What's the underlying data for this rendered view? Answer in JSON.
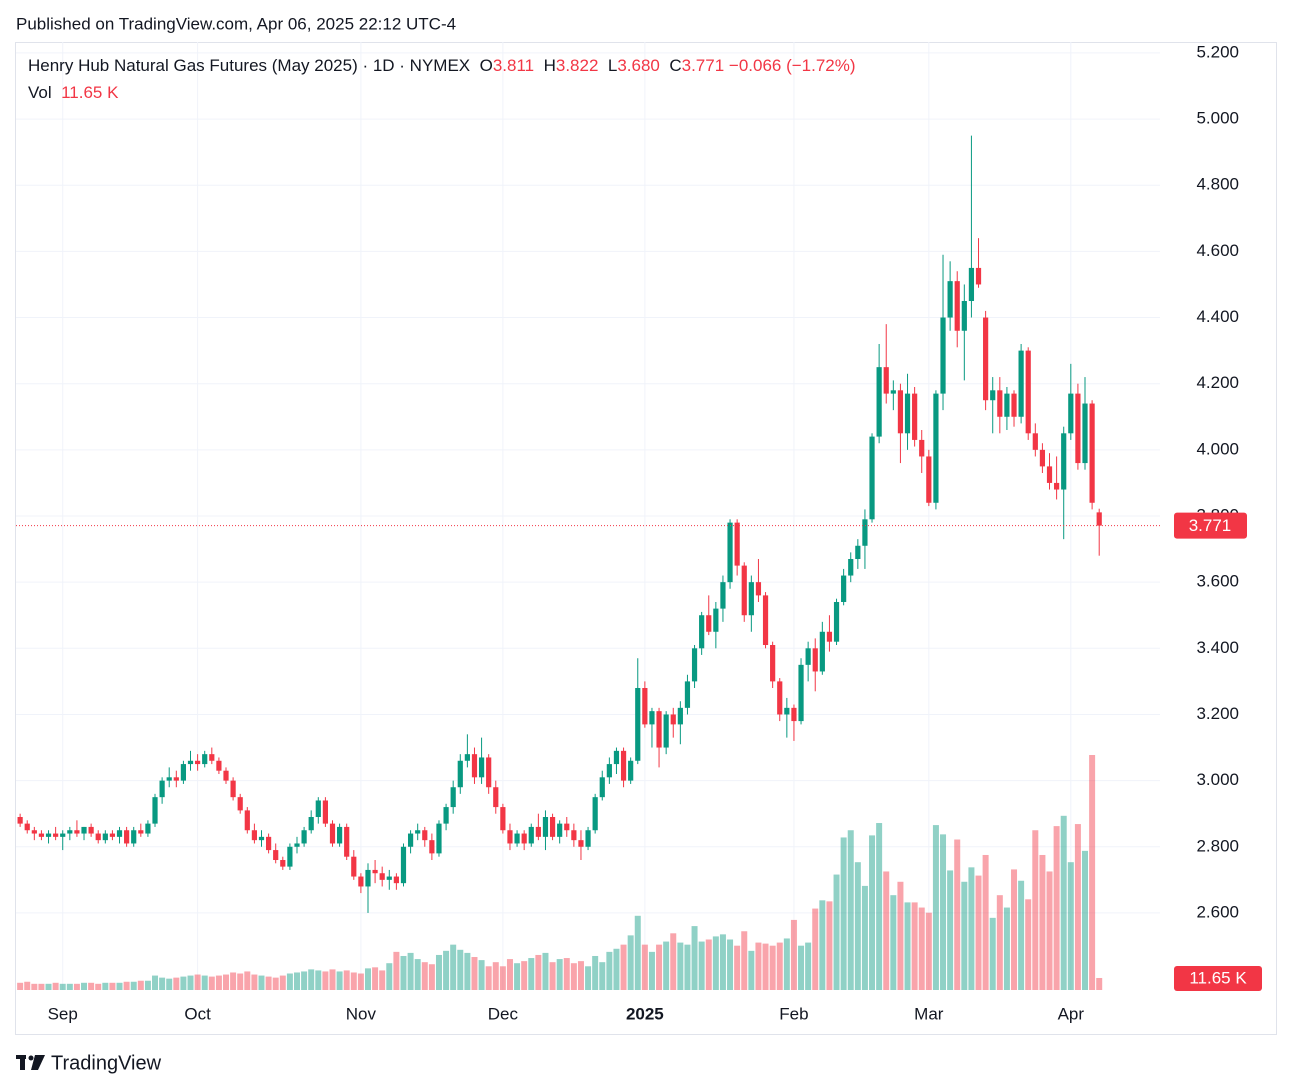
{
  "chart_data": {
    "type": "candlestick",
    "published": "Published on TradingView.com, Apr 06, 2025 22:12 UTC-4",
    "title": "Henry Hub Natural Gas Futures (May 2025) · 1D · NYMEX",
    "ohlc_names": [
      "O",
      "H",
      "L",
      "C"
    ],
    "ohlc_labels": [
      "3.811",
      "3.822",
      "3.680",
      "3.771"
    ],
    "change": "−0.066 (−1.72%)",
    "volume_name": "Vol",
    "volume_label": "11.65 K",
    "brand": "TradingView",
    "up_color": "#089981",
    "down_color": "#f23645",
    "grid": true,
    "ylim": [
      2.367,
      5.233
    ],
    "yticks": [
      {
        "value": 2.6,
        "label": "2.600"
      },
      {
        "value": 2.8,
        "label": "2.800"
      },
      {
        "value": 3.0,
        "label": "3.000"
      },
      {
        "value": 3.2,
        "label": "3.200"
      },
      {
        "value": 3.4,
        "label": "3.400"
      },
      {
        "value": 3.6,
        "label": "3.600"
      },
      {
        "value": 3.8,
        "label": "3.800"
      },
      {
        "value": 4.0,
        "label": "4.000"
      },
      {
        "value": 4.2,
        "label": "4.200"
      },
      {
        "value": 4.4,
        "label": "4.400"
      },
      {
        "value": 4.6,
        "label": "4.600"
      },
      {
        "value": 4.8,
        "label": "4.800"
      },
      {
        "value": 5.0,
        "label": "5.000"
      },
      {
        "value": 5.2,
        "label": "5.200"
      }
    ],
    "xlim": [
      -0.3,
      160
    ],
    "xticks": [
      {
        "value": 6,
        "label": "Sep"
      },
      {
        "value": 25,
        "label": "Oct"
      },
      {
        "value": 48,
        "label": "Nov"
      },
      {
        "value": 68,
        "label": "Dec"
      },
      {
        "value": 88,
        "label": "2025"
      },
      {
        "value": 109,
        "label": "Feb"
      },
      {
        "value": 128,
        "label": "Mar"
      },
      {
        "value": 148,
        "label": "Apr"
      }
    ],
    "candles": [
      [
        2.89,
        2.9,
        2.86,
        2.87
      ],
      [
        2.87,
        2.88,
        2.84,
        2.85
      ],
      [
        2.85,
        2.86,
        2.82,
        2.84
      ],
      [
        2.84,
        2.85,
        2.82,
        2.83
      ],
      [
        2.83,
        2.85,
        2.81,
        2.84
      ],
      [
        2.84,
        2.86,
        2.82,
        2.83
      ],
      [
        2.83,
        2.85,
        2.79,
        2.84
      ],
      [
        2.84,
        2.86,
        2.82,
        2.85
      ],
      [
        2.85,
        2.88,
        2.83,
        2.84
      ],
      [
        2.84,
        2.86,
        2.82,
        2.86
      ],
      [
        2.86,
        2.87,
        2.83,
        2.84
      ],
      [
        2.84,
        2.85,
        2.81,
        2.82
      ],
      [
        2.82,
        2.85,
        2.81,
        2.84
      ],
      [
        2.84,
        2.85,
        2.82,
        2.83
      ],
      [
        2.83,
        2.86,
        2.81,
        2.85
      ],
      [
        2.85,
        2.86,
        2.8,
        2.81
      ],
      [
        2.81,
        2.86,
        2.8,
        2.85
      ],
      [
        2.85,
        2.87,
        2.83,
        2.84
      ],
      [
        2.84,
        2.88,
        2.83,
        2.87
      ],
      [
        2.87,
        2.96,
        2.86,
        2.95
      ],
      [
        2.95,
        3.01,
        2.93,
        3.0
      ],
      [
        3.0,
        3.04,
        2.98,
        3.01
      ],
      [
        3.01,
        3.03,
        2.98,
        3.0
      ],
      [
        3.0,
        3.06,
        2.99,
        3.05
      ],
      [
        3.05,
        3.09,
        3.03,
        3.06
      ],
      [
        3.06,
        3.08,
        3.03,
        3.05
      ],
      [
        3.05,
        3.09,
        3.04,
        3.08
      ],
      [
        3.08,
        3.1,
        3.05,
        3.06
      ],
      [
        3.06,
        3.07,
        3.02,
        3.03
      ],
      [
        3.03,
        3.04,
        2.99,
        3.0
      ],
      [
        3.0,
        3.01,
        2.94,
        2.95
      ],
      [
        2.95,
        2.96,
        2.9,
        2.91
      ],
      [
        2.91,
        2.92,
        2.84,
        2.85
      ],
      [
        2.85,
        2.87,
        2.81,
        2.82
      ],
      [
        2.82,
        2.85,
        2.8,
        2.83
      ],
      [
        2.83,
        2.84,
        2.78,
        2.79
      ],
      [
        2.79,
        2.81,
        2.75,
        2.76
      ],
      [
        2.76,
        2.77,
        2.73,
        2.74
      ],
      [
        2.74,
        2.81,
        2.73,
        2.8
      ],
      [
        2.8,
        2.83,
        2.78,
        2.81
      ],
      [
        2.81,
        2.86,
        2.8,
        2.85
      ],
      [
        2.85,
        2.91,
        2.84,
        2.89
      ],
      [
        2.89,
        2.95,
        2.87,
        2.94
      ],
      [
        2.94,
        2.95,
        2.86,
        2.87
      ],
      [
        2.87,
        2.88,
        2.8,
        2.81
      ],
      [
        2.81,
        2.87,
        2.8,
        2.86
      ],
      [
        2.86,
        2.87,
        2.76,
        2.77
      ],
      [
        2.77,
        2.79,
        2.7,
        2.71
      ],
      [
        2.71,
        2.72,
        2.66,
        2.68
      ],
      [
        2.68,
        2.75,
        2.6,
        2.73
      ],
      [
        2.73,
        2.76,
        2.69,
        2.72
      ],
      [
        2.72,
        2.74,
        2.68,
        2.7
      ],
      [
        2.7,
        2.73,
        2.67,
        2.71
      ],
      [
        2.71,
        2.72,
        2.67,
        2.69
      ],
      [
        2.69,
        2.81,
        2.68,
        2.8
      ],
      [
        2.8,
        2.85,
        2.78,
        2.84
      ],
      [
        2.84,
        2.87,
        2.82,
        2.85
      ],
      [
        2.85,
        2.86,
        2.8,
        2.82
      ],
      [
        2.82,
        2.84,
        2.76,
        2.78
      ],
      [
        2.78,
        2.88,
        2.77,
        2.87
      ],
      [
        2.87,
        2.93,
        2.85,
        2.92
      ],
      [
        2.92,
        3.0,
        2.9,
        2.98
      ],
      [
        2.98,
        3.08,
        2.96,
        3.06
      ],
      [
        3.06,
        3.14,
        3.04,
        3.08
      ],
      [
        3.08,
        3.1,
        2.99,
        3.01
      ],
      [
        3.01,
        3.13,
        2.99,
        3.07
      ],
      [
        3.07,
        3.08,
        2.96,
        2.98
      ],
      [
        2.98,
        3.0,
        2.9,
        2.92
      ],
      [
        2.92,
        2.93,
        2.84,
        2.85
      ],
      [
        2.85,
        2.87,
        2.79,
        2.81
      ],
      [
        2.81,
        2.85,
        2.8,
        2.84
      ],
      [
        2.84,
        2.85,
        2.79,
        2.81
      ],
      [
        2.81,
        2.87,
        2.8,
        2.86
      ],
      [
        2.86,
        2.9,
        2.82,
        2.83
      ],
      [
        2.83,
        2.91,
        2.79,
        2.89
      ],
      [
        2.89,
        2.9,
        2.82,
        2.83
      ],
      [
        2.83,
        2.88,
        2.81,
        2.87
      ],
      [
        2.87,
        2.89,
        2.83,
        2.85
      ],
      [
        2.85,
        2.87,
        2.8,
        2.82
      ],
      [
        2.82,
        2.85,
        2.76,
        2.8
      ],
      [
        2.8,
        2.86,
        2.79,
        2.85
      ],
      [
        2.85,
        2.96,
        2.84,
        2.95
      ],
      [
        2.95,
        3.03,
        2.94,
        3.01
      ],
      [
        3.01,
        3.07,
        2.99,
        3.05
      ],
      [
        3.05,
        3.1,
        3.02,
        3.09
      ],
      [
        3.09,
        3.1,
        2.98,
        3.0
      ],
      [
        3.0,
        3.07,
        2.99,
        3.06
      ],
      [
        3.06,
        3.37,
        3.05,
        3.28
      ],
      [
        3.28,
        3.3,
        3.16,
        3.17
      ],
      [
        3.17,
        3.22,
        3.1,
        3.21
      ],
      [
        3.21,
        3.22,
        3.04,
        3.1
      ],
      [
        3.1,
        3.21,
        3.08,
        3.2
      ],
      [
        3.2,
        3.22,
        3.13,
        3.17
      ],
      [
        3.17,
        3.24,
        3.11,
        3.22
      ],
      [
        3.22,
        3.32,
        3.2,
        3.3
      ],
      [
        3.3,
        3.41,
        3.28,
        3.4
      ],
      [
        3.4,
        3.51,
        3.38,
        3.5
      ],
      [
        3.5,
        3.56,
        3.44,
        3.45
      ],
      [
        3.45,
        3.54,
        3.4,
        3.52
      ],
      [
        3.52,
        3.62,
        3.48,
        3.6
      ],
      [
        3.6,
        3.79,
        3.58,
        3.78
      ],
      [
        3.78,
        3.79,
        3.62,
        3.65
      ],
      [
        3.65,
        3.66,
        3.48,
        3.5
      ],
      [
        3.5,
        3.62,
        3.45,
        3.6
      ],
      [
        3.6,
        3.67,
        3.54,
        3.56
      ],
      [
        3.56,
        3.57,
        3.4,
        3.41
      ],
      [
        3.41,
        3.42,
        3.28,
        3.3
      ],
      [
        3.3,
        3.31,
        3.18,
        3.2
      ],
      [
        3.2,
        3.25,
        3.13,
        3.22
      ],
      [
        3.22,
        3.23,
        3.12,
        3.18
      ],
      [
        3.18,
        3.37,
        3.17,
        3.35
      ],
      [
        3.35,
        3.42,
        3.3,
        3.4
      ],
      [
        3.4,
        3.43,
        3.27,
        3.33
      ],
      [
        3.33,
        3.48,
        3.32,
        3.45
      ],
      [
        3.45,
        3.5,
        3.39,
        3.42
      ],
      [
        3.42,
        3.55,
        3.41,
        3.54
      ],
      [
        3.54,
        3.64,
        3.53,
        3.62
      ],
      [
        3.62,
        3.69,
        3.6,
        3.67
      ],
      [
        3.67,
        3.73,
        3.64,
        3.71
      ],
      [
        3.71,
        3.82,
        3.64,
        3.79
      ],
      [
        3.79,
        4.05,
        3.78,
        4.04
      ],
      [
        4.04,
        4.32,
        4.02,
        4.25
      ],
      [
        4.25,
        4.38,
        4.14,
        4.17
      ],
      [
        4.17,
        4.21,
        4.12,
        4.18
      ],
      [
        4.18,
        4.2,
        3.96,
        4.05
      ],
      [
        4.05,
        4.23,
        4.0,
        4.17
      ],
      [
        4.17,
        4.19,
        4.01,
        4.03
      ],
      [
        4.03,
        4.06,
        3.93,
        3.98
      ],
      [
        3.98,
        4.0,
        3.83,
        3.84
      ],
      [
        3.84,
        4.18,
        3.82,
        4.17
      ],
      [
        4.17,
        4.59,
        4.12,
        4.4
      ],
      [
        4.4,
        4.57,
        4.36,
        4.51
      ],
      [
        4.51,
        4.54,
        4.31,
        4.36
      ],
      [
        4.36,
        4.5,
        4.21,
        4.45
      ],
      [
        4.45,
        4.95,
        4.4,
        4.55
      ],
      [
        4.55,
        4.64,
        4.49,
        4.5
      ],
      [
        4.4,
        4.42,
        4.12,
        4.15
      ],
      [
        4.15,
        4.22,
        4.05,
        4.18
      ],
      [
        4.18,
        4.22,
        4.05,
        4.1
      ],
      [
        4.1,
        4.19,
        4.06,
        4.17
      ],
      [
        4.17,
        4.18,
        4.07,
        4.1
      ],
      [
        4.1,
        4.32,
        4.08,
        4.3
      ],
      [
        4.3,
        4.31,
        4.03,
        4.05
      ],
      [
        4.05,
        4.08,
        3.98,
        4.0
      ],
      [
        4.0,
        4.02,
        3.93,
        3.95
      ],
      [
        3.95,
        3.99,
        3.88,
        3.9
      ],
      [
        3.9,
        3.98,
        3.85,
        3.88
      ],
      [
        3.88,
        4.07,
        3.73,
        4.05
      ],
      [
        4.05,
        4.26,
        4.03,
        4.17
      ],
      [
        4.17,
        4.2,
        3.94,
        3.96
      ],
      [
        3.96,
        4.22,
        3.94,
        4.14
      ],
      [
        4.14,
        4.15,
        3.82,
        3.84
      ],
      [
        3.811,
        3.822,
        3.68,
        3.771
      ]
    ],
    "volume": [
      7,
      8,
      6,
      6,
      6,
      7,
      6,
      6,
      6,
      7,
      7,
      6,
      7,
      7,
      7,
      8,
      8,
      9,
      9,
      14,
      12,
      11,
      12,
      13,
      14,
      15,
      14,
      13,
      14,
      15,
      17,
      16,
      18,
      15,
      14,
      13,
      12,
      14,
      16,
      17,
      18,
      20,
      19,
      18,
      20,
      18,
      19,
      17,
      16,
      21,
      22,
      19,
      26,
      37,
      33,
      36,
      30,
      27,
      25,
      34,
      38,
      44,
      39,
      36,
      32,
      29,
      23,
      27,
      23,
      30,
      26,
      28,
      31,
      34,
      36,
      27,
      30,
      31,
      26,
      28,
      23,
      33,
      27,
      37,
      40,
      44,
      53,
      72,
      44,
      37,
      44,
      47,
      55,
      46,
      44,
      62,
      47,
      49,
      52,
      54,
      49,
      43,
      57,
      38,
      46,
      45,
      43,
      46,
      50,
      68,
      43,
      46,
      79,
      87,
      86,
      112,
      148,
      155,
      124,
      101,
      150,
      162,
      115,
      92,
      105,
      85,
      85,
      80,
      75,
      160,
      151,
      116,
      146,
      105,
      119,
      111,
      131,
      70,
      92,
      80,
      117,
      106,
      88,
      155,
      131,
      115,
      159,
      169,
      124,
      161,
      135,
      228,
      11.65
    ]
  }
}
